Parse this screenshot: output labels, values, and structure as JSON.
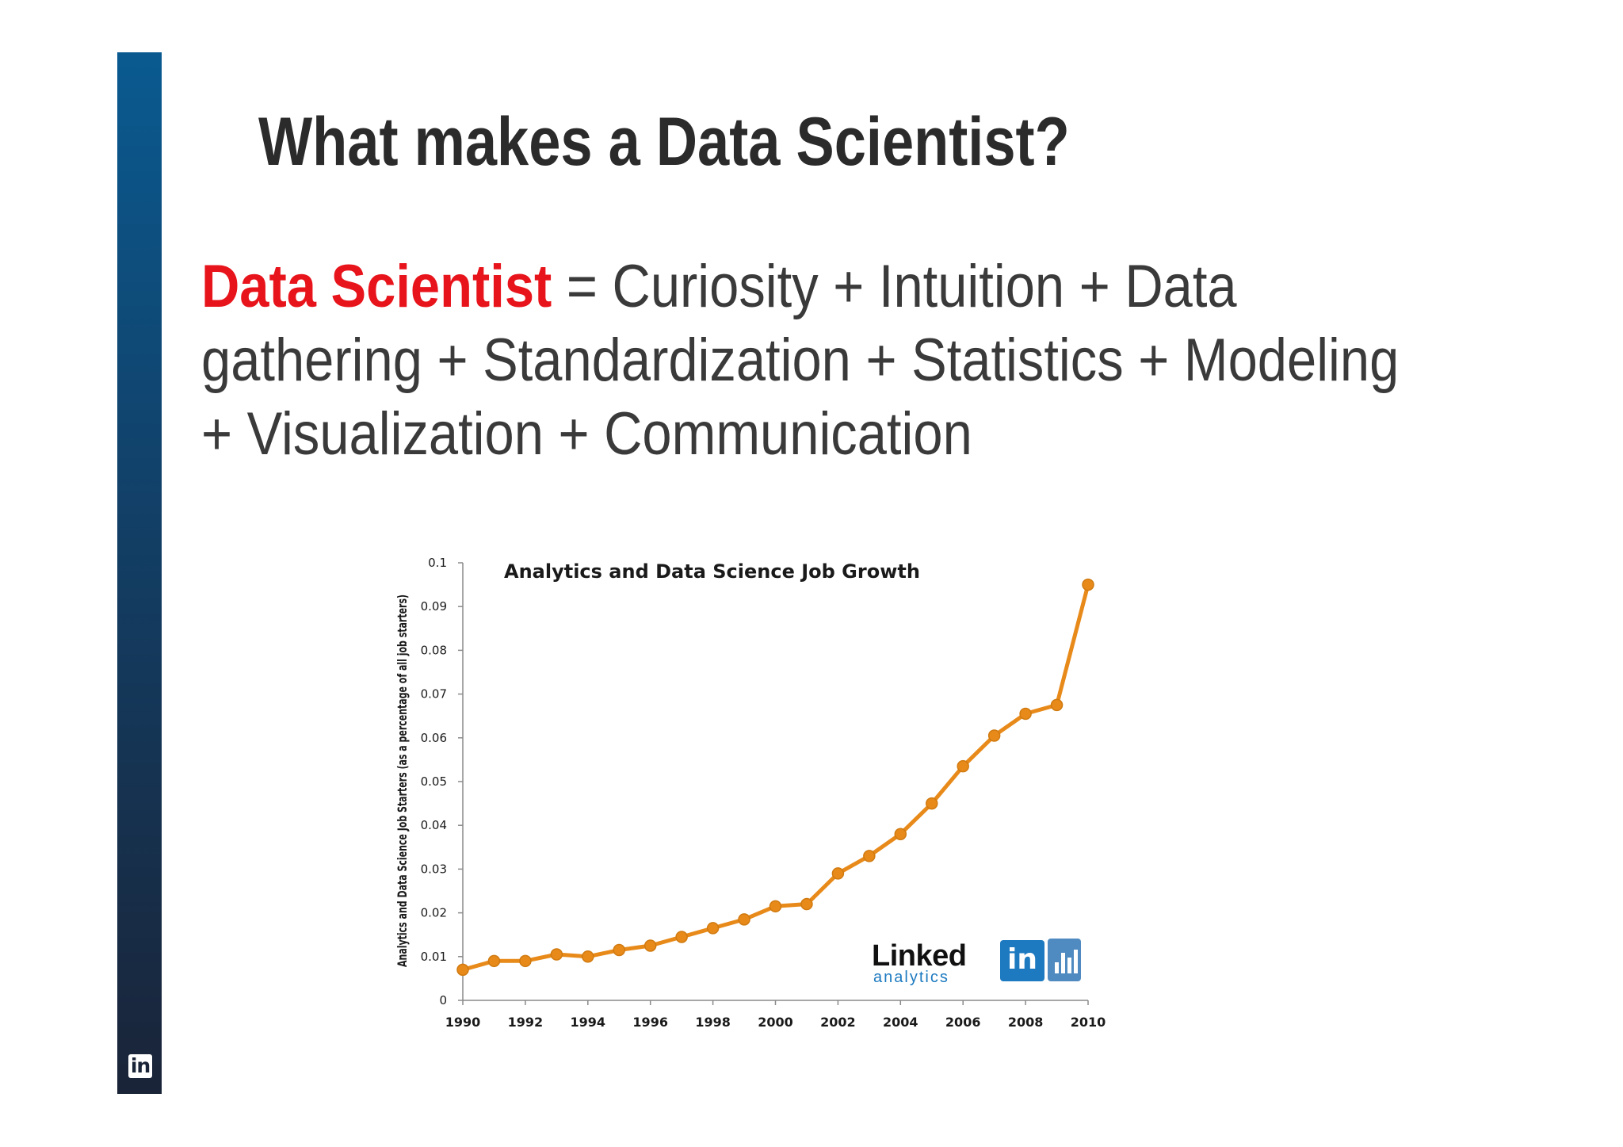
{
  "slide": {
    "title": "What makes a Data Scientist?",
    "definition": {
      "term": "Data Scientist",
      "line1_rest": " = Curiosity + Intuition + Data",
      "line2": "gathering + Standardization + Statistics + Modeling",
      "line3": "+ Visualization + Communication"
    },
    "footer_logo_text": "in"
  },
  "colors": {
    "sidebar_top": "#0a5a90",
    "sidebar_bottom": "#1a2438",
    "term_red": "#e8141b",
    "series_orange": "#e88a1a",
    "linkedin_blue": "#1d7ac0"
  },
  "chart_data": {
    "type": "line",
    "title": "Analytics and Data Science Job Growth",
    "ylabel": "Analytics and Data Science Job Starters (as a percentage of all job starters)",
    "xlabel": "",
    "xlim": [
      1990,
      2010
    ],
    "ylim": [
      0,
      0.1
    ],
    "x_ticks": [
      "1990",
      "1992",
      "1994",
      "1996",
      "1998",
      "2000",
      "2002",
      "2004",
      "2006",
      "2008",
      "2010"
    ],
    "y_ticks": [
      "0",
      "0.01",
      "0.02",
      "0.03",
      "0.04",
      "0.05",
      "0.06",
      "0.07",
      "0.08",
      "0.09",
      "0.1"
    ],
    "grid": false,
    "legend": "none",
    "series": [
      {
        "color": "#e88a1a",
        "x": [
          1990,
          1991,
          1992,
          1993,
          1994,
          1995,
          1996,
          1997,
          1998,
          1999,
          2000,
          2001,
          2002,
          2003,
          2004,
          2005,
          2006,
          2007,
          2008,
          2009,
          2010
        ],
        "y": [
          0.007,
          0.009,
          0.009,
          0.0105,
          0.01,
          0.0115,
          0.0125,
          0.0145,
          0.0165,
          0.0185,
          0.0215,
          0.022,
          0.029,
          0.033,
          0.038,
          0.045,
          0.0535,
          0.0605,
          0.0655,
          0.0675,
          0.095
        ]
      }
    ],
    "logo": {
      "word": "Linked",
      "badge": "in",
      "sub": "analytics"
    }
  }
}
